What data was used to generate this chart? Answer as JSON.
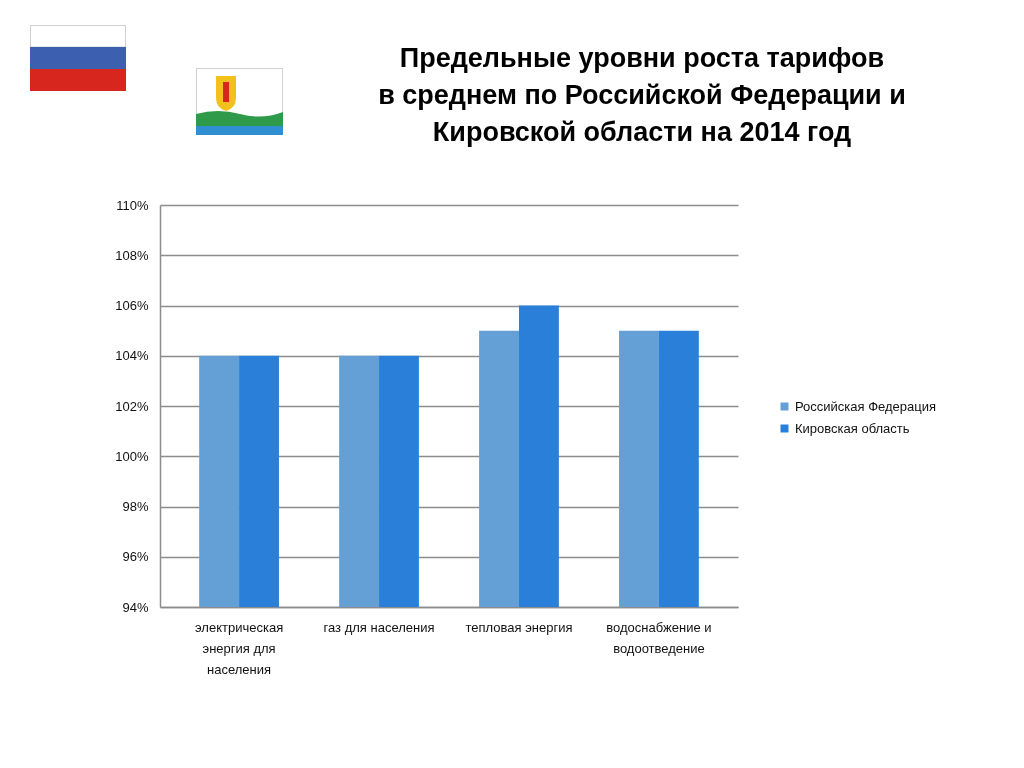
{
  "chart_data": {
    "type": "bar",
    "title": "Предельные уровни роста тарифов\nв среднем по Российской Федерации и\nКировской области на 2014 год",
    "categories": [
      "электрическая энергия для населения",
      "газ для населения",
      "тепловая энергия",
      "водоснабжение и водоотведение"
    ],
    "series": [
      {
        "name": "Российская Федерация",
        "color": "#64a0d5",
        "values": [
          104,
          104,
          105,
          105
        ]
      },
      {
        "name": "Кировская область",
        "color": "#2a80d8",
        "values": [
          104,
          104,
          106,
          105
        ]
      }
    ],
    "ylim": [
      94,
      110
    ],
    "yticks": [
      {
        "value": 94,
        "label": "94%"
      },
      {
        "value": 96,
        "label": "96%"
      },
      {
        "value": 98,
        "label": "98%"
      },
      {
        "value": 100,
        "label": "100%"
      },
      {
        "value": 102,
        "label": "102%"
      },
      {
        "value": 104,
        "label": "104%"
      },
      {
        "value": 106,
        "label": "106%"
      },
      {
        "value": 108,
        "label": "108%"
      },
      {
        "value": 110,
        "label": "110%"
      }
    ],
    "grid": "y",
    "legend": "right"
  }
}
